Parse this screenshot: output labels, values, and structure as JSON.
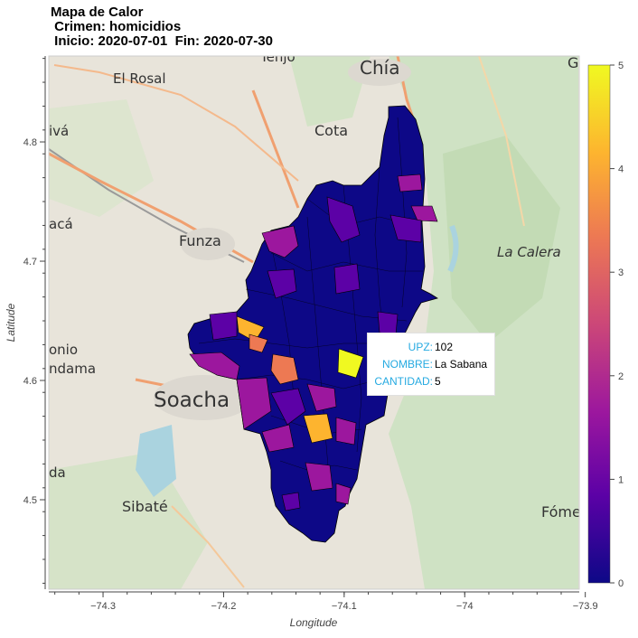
{
  "title": {
    "line1": "Mapa de Calor",
    "line2": " Crimen: homicidios",
    "line3": " Inicio: 2020-07-01  Fin: 2020-07-30"
  },
  "axes": {
    "xlabel": "Longitude",
    "ylabel": "Latitude",
    "xlim": [
      -74.345,
      -73.905
    ],
    "ylim": [
      4.425,
      4.872
    ],
    "xticks": [
      -74.3,
      -74.2,
      -74.1,
      -74.0,
      -73.9
    ],
    "xtick_labels": [
      "−74.3",
      "−74.2",
      "−74.1",
      "−74",
      "−73.9"
    ],
    "yticks": [
      4.5,
      4.6,
      4.7,
      4.8
    ],
    "ytick_labels": [
      "4.5",
      "4.6",
      "4.7",
      "4.8"
    ]
  },
  "basemap_places": [
    {
      "name": "El Rosal"
    },
    {
      "name": "Tenjo"
    },
    {
      "name": "Chía"
    },
    {
      "name": "Cota"
    },
    {
      "name": "Funza"
    },
    {
      "name": "La Calera"
    },
    {
      "name": "Soacha"
    },
    {
      "name": "Sibaté"
    },
    {
      "name": "Fóme"
    },
    {
      "name": "ivá"
    },
    {
      "name": "acá"
    },
    {
      "name": "onio"
    },
    {
      "name": "ndama"
    },
    {
      "name": "da"
    },
    {
      "name": "G"
    }
  ],
  "colorbar": {
    "min": 0,
    "max": 5,
    "ticks": [
      "0",
      "1",
      "2",
      "3",
      "4",
      "5"
    ],
    "palette": [
      "#0d0887",
      "#5c01a6",
      "#9c179e",
      "#cc4778",
      "#ed7953",
      "#fdb42f",
      "#f0f921"
    ]
  },
  "tooltip": {
    "rows": [
      {
        "key": "UPZ:",
        "value": "102"
      },
      {
        "key": "NOMBRE:",
        "value": "La Sabana"
      },
      {
        "key": "CANTIDAD:",
        "value": "5"
      }
    ]
  },
  "chart_data": {
    "type": "heatmap",
    "variable": "CANTIDAD",
    "highlighted": {
      "upz": "102",
      "nombre": "La Sabana",
      "cantidad": 5
    },
    "regions": [
      {
        "lon": -74.072,
        "lat": 4.611,
        "value": 5
      },
      {
        "lon": -74.16,
        "lat": 4.64,
        "value": 4
      },
      {
        "lon": -74.112,
        "lat": 4.548,
        "value": 4
      },
      {
        "lon": -74.146,
        "lat": 4.63,
        "value": 3
      },
      {
        "lon": -74.131,
        "lat": 4.607,
        "value": 3
      },
      {
        "lon": -74.176,
        "lat": 4.609,
        "value": 2
      },
      {
        "lon": -74.13,
        "lat": 4.716,
        "value": 2
      },
      {
        "lon": -74.05,
        "lat": 4.74,
        "value": 2
      },
      {
        "lon": -74.04,
        "lat": 4.76,
        "value": 2
      },
      {
        "lon": -74.149,
        "lat": 4.56,
        "value": 2
      },
      {
        "lon": -74.096,
        "lat": 4.562,
        "value": 2
      },
      {
        "lon": -74.107,
        "lat": 4.512,
        "value": 2
      },
      {
        "lon": -74.083,
        "lat": 4.557,
        "value": 2
      },
      {
        "lon": -74.103,
        "lat": 4.595,
        "value": 2
      },
      {
        "lon": -74.088,
        "lat": 4.745,
        "value": 1
      },
      {
        "lon": -74.119,
        "lat": 4.68,
        "value": 1
      },
      {
        "lon": -74.14,
        "lat": 4.68,
        "value": 1
      },
      {
        "lon": -74.12,
        "lat": 4.591,
        "value": 1
      },
      {
        "lon": -74.152,
        "lat": 4.58,
        "value": 1
      },
      {
        "lon": -74.058,
        "lat": 4.647,
        "value": 1
      },
      {
        "lon": -74.094,
        "lat": 4.52,
        "value": 1
      }
    ]
  }
}
